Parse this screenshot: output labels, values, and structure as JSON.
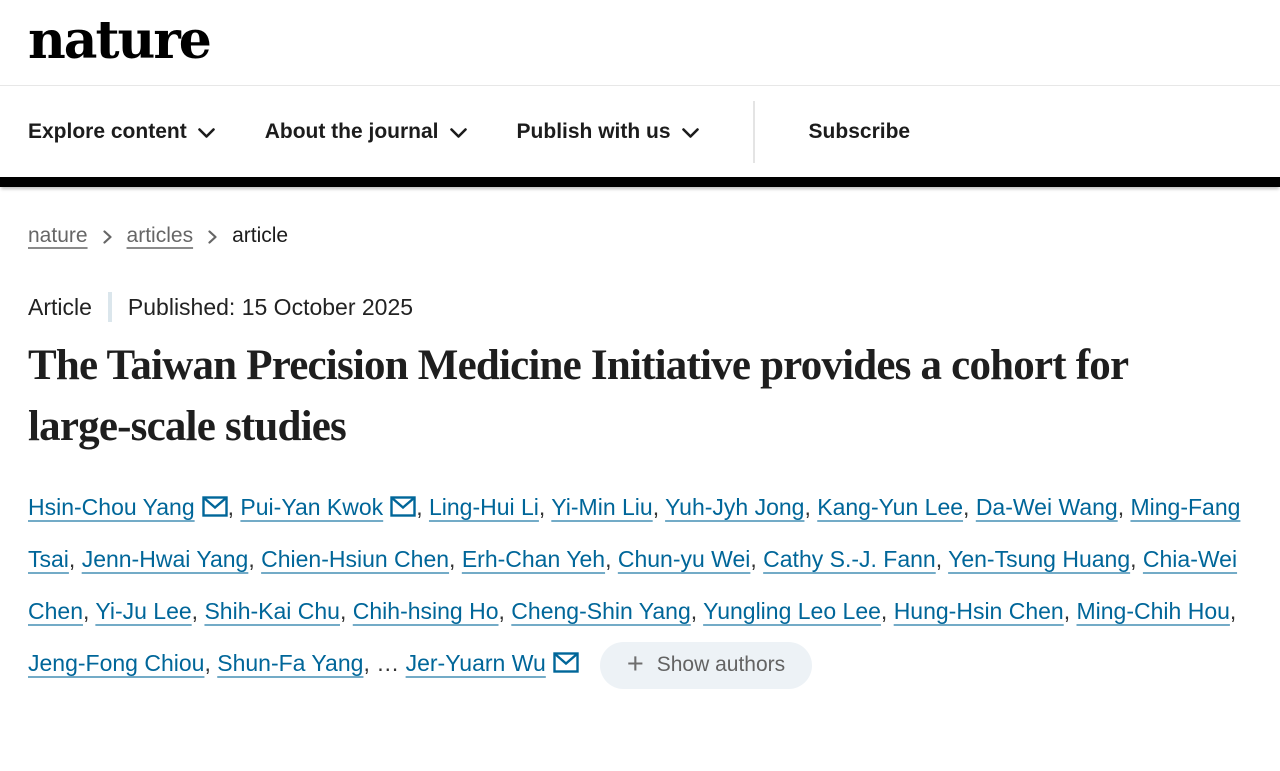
{
  "brand": {
    "logo_text": "nature"
  },
  "nav": {
    "items": [
      {
        "label": "Explore content"
      },
      {
        "label": "About the journal"
      },
      {
        "label": "Publish with us"
      }
    ],
    "subscribe_label": "Subscribe"
  },
  "breadcrumb": {
    "items": [
      {
        "label": "nature"
      },
      {
        "label": "articles"
      },
      {
        "label": "article"
      }
    ]
  },
  "article": {
    "type_label": "Article",
    "published_label": "Published: 15 October 2025",
    "title": "The Taiwan Precision Medicine Initiative provides a cohort for large-scale studies",
    "authors": [
      {
        "name": "Hsin-Chou Yang",
        "email": true
      },
      {
        "name": "Pui-Yan Kwok",
        "email": true
      },
      {
        "name": "Ling-Hui Li"
      },
      {
        "name": "Yi-Min Liu"
      },
      {
        "name": "Yuh-Jyh Jong"
      },
      {
        "name": "Kang-Yun Lee"
      },
      {
        "name": "Da-Wei Wang"
      },
      {
        "name": "Ming-Fang Tsai"
      },
      {
        "name": "Jenn-Hwai Yang"
      },
      {
        "name": "Chien-Hsiun Chen"
      },
      {
        "name": "Erh-Chan Yeh"
      },
      {
        "name": "Chun-yu Wei"
      },
      {
        "name": "Cathy S.-J. Fann"
      },
      {
        "name": "Yen-Tsung Huang"
      },
      {
        "name": "Chia-Wei Chen"
      },
      {
        "name": "Yi-Ju Lee"
      },
      {
        "name": "Shih-Kai Chu"
      },
      {
        "name": "Chih-hsing Ho"
      },
      {
        "name": "Cheng-Shin Yang"
      },
      {
        "name": "Yungling Leo Lee"
      },
      {
        "name": "Hung-Hsin Chen"
      },
      {
        "name": "Ming-Chih Hou"
      },
      {
        "name": "Jeng-Fong Chiou"
      },
      {
        "name": "Shun-Fa Yang"
      },
      {
        "ellipsis": true
      },
      {
        "name": "Jer-Yuarn Wu",
        "email": true
      }
    ],
    "show_authors_label": "Show authors",
    "ellipsis_char": "…"
  },
  "colors": {
    "link_blue": "#006699",
    "bar_black": "#000000",
    "button_bg": "#edf2f6"
  }
}
